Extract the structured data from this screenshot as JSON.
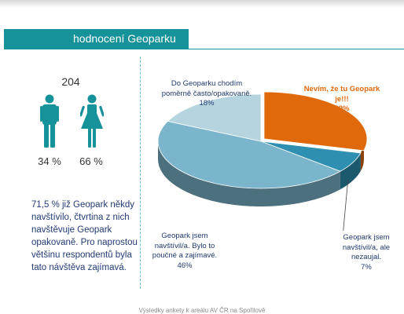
{
  "header": {
    "title": "hodnocení Geoparku"
  },
  "respondents": {
    "count": "204",
    "male_percent": "34 %",
    "female_percent": "66 %"
  },
  "summary_text": "71,5 % již Geopark někdy navštívilo, čtvrtina z nich navštěvuje Geopark opakovaně. Pro naprostou většinu respondentů byla tato návštěva zajímavá.",
  "footer": "Výsledky ankety k areálu AV ČR na Spořilově",
  "chart_data": {
    "type": "pie",
    "title": "",
    "slices": [
      {
        "label": "Nevím, že tu Geopark je!!!",
        "percent_label": "29%",
        "value": 29,
        "color": "#e0690c"
      },
      {
        "label": "Geopark jsem navštívil/a, ale nezaujal.",
        "percent_label": "7%",
        "value": 7,
        "color": "#2f8fb0"
      },
      {
        "label": "Geopark jsem navštívil/a. Bylo to poučné a zajímavé.",
        "percent_label": "46%",
        "value": 46,
        "color": "#7bb5cc"
      },
      {
        "label": "Do Geoparku chodím poměrně často/opakovaně.",
        "percent_label": "18%",
        "value": 18,
        "color": "#b5d4df"
      }
    ]
  }
}
